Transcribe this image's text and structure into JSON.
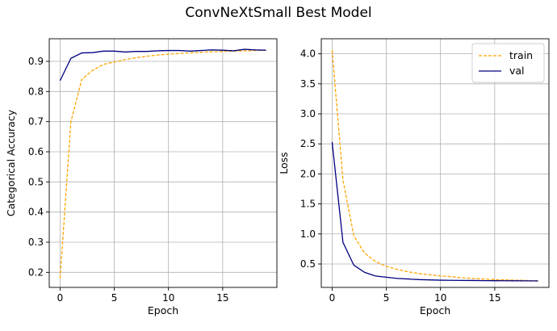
{
  "figure": {
    "title": "ConvNeXtSmall Best Model"
  },
  "chart_data": [
    {
      "type": "line",
      "xlabel": "Epoch",
      "ylabel": "Categorical Accuracy",
      "xlim": [
        -1,
        20
      ],
      "ylim": [
        0.15,
        0.975
      ],
      "xticks": [
        0,
        5,
        10,
        15
      ],
      "yticks": [
        0.2,
        0.3,
        0.4,
        0.5,
        0.6,
        0.7,
        0.8,
        0.9
      ],
      "grid": true,
      "x": [
        0,
        1,
        2,
        3,
        4,
        5,
        6,
        7,
        8,
        9,
        10,
        11,
        12,
        13,
        14,
        15,
        16,
        17,
        18,
        19
      ],
      "series": [
        {
          "name": "train",
          "color": "#FFA500",
          "dash": "dashed",
          "values": [
            0.18,
            0.7,
            0.84,
            0.87,
            0.89,
            0.898,
            0.906,
            0.912,
            0.917,
            0.921,
            0.924,
            0.926,
            0.928,
            0.93,
            0.932,
            0.933,
            0.934,
            0.935,
            0.936,
            0.937
          ]
        },
        {
          "name": "val",
          "color": "#000080",
          "dash": "solid",
          "values": [
            0.836,
            0.91,
            0.928,
            0.929,
            0.934,
            0.934,
            0.931,
            0.933,
            0.933,
            0.935,
            0.936,
            0.936,
            0.934,
            0.936,
            0.938,
            0.937,
            0.935,
            0.94,
            0.938,
            0.937
          ]
        }
      ]
    },
    {
      "type": "line",
      "xlabel": "Epoch",
      "ylabel": "Loss",
      "xlim": [
        -1,
        20
      ],
      "ylim": [
        0.11,
        4.25
      ],
      "xticks": [
        0,
        5,
        10,
        15
      ],
      "yticks": [
        0.5,
        1.0,
        1.5,
        2.0,
        2.5,
        3.0,
        3.5,
        4.0
      ],
      "grid": true,
      "legend": "top-right",
      "x": [
        0,
        1,
        2,
        3,
        4,
        5,
        6,
        7,
        8,
        9,
        10,
        11,
        12,
        13,
        14,
        15,
        16,
        17,
        18,
        19
      ],
      "series": [
        {
          "name": "train",
          "color": "#FFA500",
          "dash": "dashed",
          "values": [
            4.06,
            1.9,
            0.97,
            0.68,
            0.54,
            0.46,
            0.41,
            0.37,
            0.34,
            0.32,
            0.3,
            0.29,
            0.27,
            0.26,
            0.25,
            0.24,
            0.235,
            0.23,
            0.225,
            0.22
          ]
        },
        {
          "name": "val",
          "color": "#000080",
          "dash": "solid",
          "values": [
            2.53,
            0.86,
            0.48,
            0.36,
            0.3,
            0.28,
            0.26,
            0.25,
            0.24,
            0.235,
            0.23,
            0.228,
            0.226,
            0.225,
            0.223,
            0.222,
            0.221,
            0.22,
            0.219,
            0.218
          ]
        }
      ]
    }
  ]
}
